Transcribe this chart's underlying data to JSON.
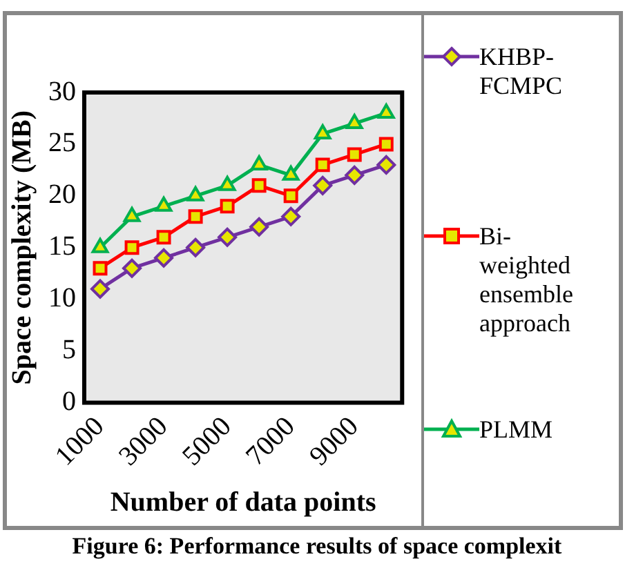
{
  "chart_data": {
    "type": "line",
    "xlabel": "Number of data points",
    "ylabel": "Space complexity (MB)",
    "categories": [
      "1000",
      null,
      "3000",
      null,
      "5000",
      null,
      "7000",
      null,
      "9000",
      null
    ],
    "ylim": [
      0,
      30
    ],
    "yticks": [
      0,
      5,
      10,
      15,
      20,
      25,
      30
    ],
    "grid": false,
    "legend": "right",
    "line_style": "solid",
    "series": [
      {
        "name": "KHBP-FCMPC",
        "color": "#7030a0",
        "marker": "diamond",
        "values": [
          11,
          13,
          14,
          15,
          16,
          17,
          18,
          21,
          22,
          23
        ]
      },
      {
        "name": "Bi-weighted ensemble approach",
        "color": "#ff0000",
        "marker": "square",
        "values": [
          13,
          15,
          16,
          18,
          19,
          21,
          20,
          23,
          24,
          25
        ]
      },
      {
        "name": "PLMM",
        "color": "#00b050",
        "marker": "triangle",
        "values": [
          15,
          18,
          19,
          20,
          21,
          23,
          22,
          26,
          27,
          28
        ]
      }
    ],
    "annotations": [
      "Figure 6: Performance results of space complexit"
    ]
  }
}
